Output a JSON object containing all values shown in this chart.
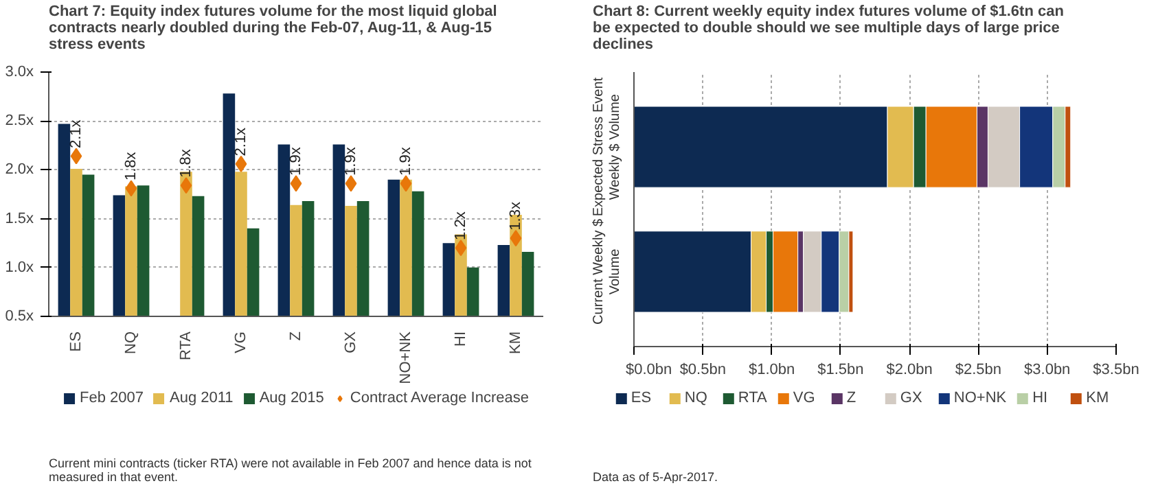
{
  "chart_data": [
    {
      "type": "bar",
      "title": "Chart 7: Equity index futures volume for the most liquid global contracts nearly doubled during the Feb-07, Aug-11, & Aug-15 stress events",
      "categories": [
        "ES",
        "NQ",
        "RTA",
        "VG",
        "Z",
        "GX",
        "NO+NK",
        "HI",
        "KM"
      ],
      "series": [
        {
          "name": "Feb 2007",
          "color": "#0d2a52",
          "values": [
            2.47,
            1.74,
            null,
            2.78,
            2.26,
            2.26,
            1.9,
            1.25,
            1.23
          ]
        },
        {
          "name": "Aug 2011",
          "color": "#e2bb50",
          "values": [
            2.01,
            1.83,
            1.98,
            1.98,
            1.64,
            1.63,
            1.9,
            1.34,
            1.54
          ]
        },
        {
          "name": "Aug 2015",
          "color": "#1e5a32",
          "values": [
            1.95,
            1.84,
            1.73,
            1.4,
            1.68,
            1.68,
            1.78,
            1.0,
            1.16
          ]
        },
        {
          "name": "Contract Average Increase",
          "type": "scatter",
          "marker": "diamond",
          "color": "#e8770a",
          "values": [
            2.14,
            1.81,
            1.84,
            2.06,
            1.86,
            1.86,
            1.86,
            1.2,
            1.3
          ],
          "value_labels": [
            "2.1x",
            "1.8x",
            "1.8x",
            "2.1x",
            "1.9x",
            "1.9x",
            "1.9x",
            "1.2x",
            "1.3x"
          ]
        }
      ],
      "ylim": [
        0.5,
        3.0
      ],
      "yticks": [
        {
          "value": 0.5,
          "label": "0.5x"
        },
        {
          "value": 1.0,
          "label": "1.0x"
        },
        {
          "value": 1.5,
          "label": "1.5x"
        },
        {
          "value": 2.0,
          "label": "2.0x"
        },
        {
          "value": 2.5,
          "label": "2.5x"
        },
        {
          "value": 3.0,
          "label": "3.0x"
        }
      ],
      "grid": "y",
      "legend": "bottom",
      "annotations": [
        "Current mini contracts (ticker RTA) were not available in Feb 2007 and hence data is not measured in that event."
      ]
    },
    {
      "type": "bar",
      "orientation": "horizontal",
      "stacked": true,
      "title": "Chart 8: Current weekly equity index futures volume of $1.6tn can be expected to double should we see multiple days of large price declines",
      "categories": [
        "Expected Stress Event Weekly $ Volume",
        "Current Weekly $ Volume"
      ],
      "series": [
        {
          "name": "ES",
          "color": "#0d2a52",
          "values": [
            1.84,
            0.85
          ]
        },
        {
          "name": "NQ",
          "color": "#e2bb50",
          "values": [
            0.19,
            0.11
          ]
        },
        {
          "name": "RTA",
          "color": "#1e5a32",
          "values": [
            0.09,
            0.05
          ]
        },
        {
          "name": "VG",
          "color": "#e8770a",
          "values": [
            0.37,
            0.18
          ]
        },
        {
          "name": "Z",
          "color": "#5a3565",
          "values": [
            0.08,
            0.04
          ]
        },
        {
          "name": "GX",
          "color": "#d3cbc3",
          "values": [
            0.23,
            0.13
          ]
        },
        {
          "name": "NO+NK",
          "color": "#13357a",
          "values": [
            0.24,
            0.13
          ]
        },
        {
          "name": "HI",
          "color": "#b9cfa6",
          "values": [
            0.09,
            0.07
          ]
        },
        {
          "name": "KM",
          "color": "#c0500f",
          "values": [
            0.04,
            0.03
          ]
        }
      ],
      "xlim": [
        0,
        3.5
      ],
      "xticks": [
        {
          "value": 0,
          "label": "$0.0bn"
        },
        {
          "value": 0.5,
          "label": "$0.5bn"
        },
        {
          "value": 1.0,
          "label": "$1.0bn"
        },
        {
          "value": 1.5,
          "label": "$1.5bn"
        },
        {
          "value": 2.0,
          "label": "$2.0bn"
        },
        {
          "value": 2.5,
          "label": "$2.5bn"
        },
        {
          "value": 3.0,
          "label": "$3.0bn"
        },
        {
          "value": 3.5,
          "label": "$3.5bn"
        }
      ],
      "grid": "x",
      "legend": "bottom",
      "annotations": [
        "Data as of 5-Apr-2017."
      ]
    }
  ]
}
